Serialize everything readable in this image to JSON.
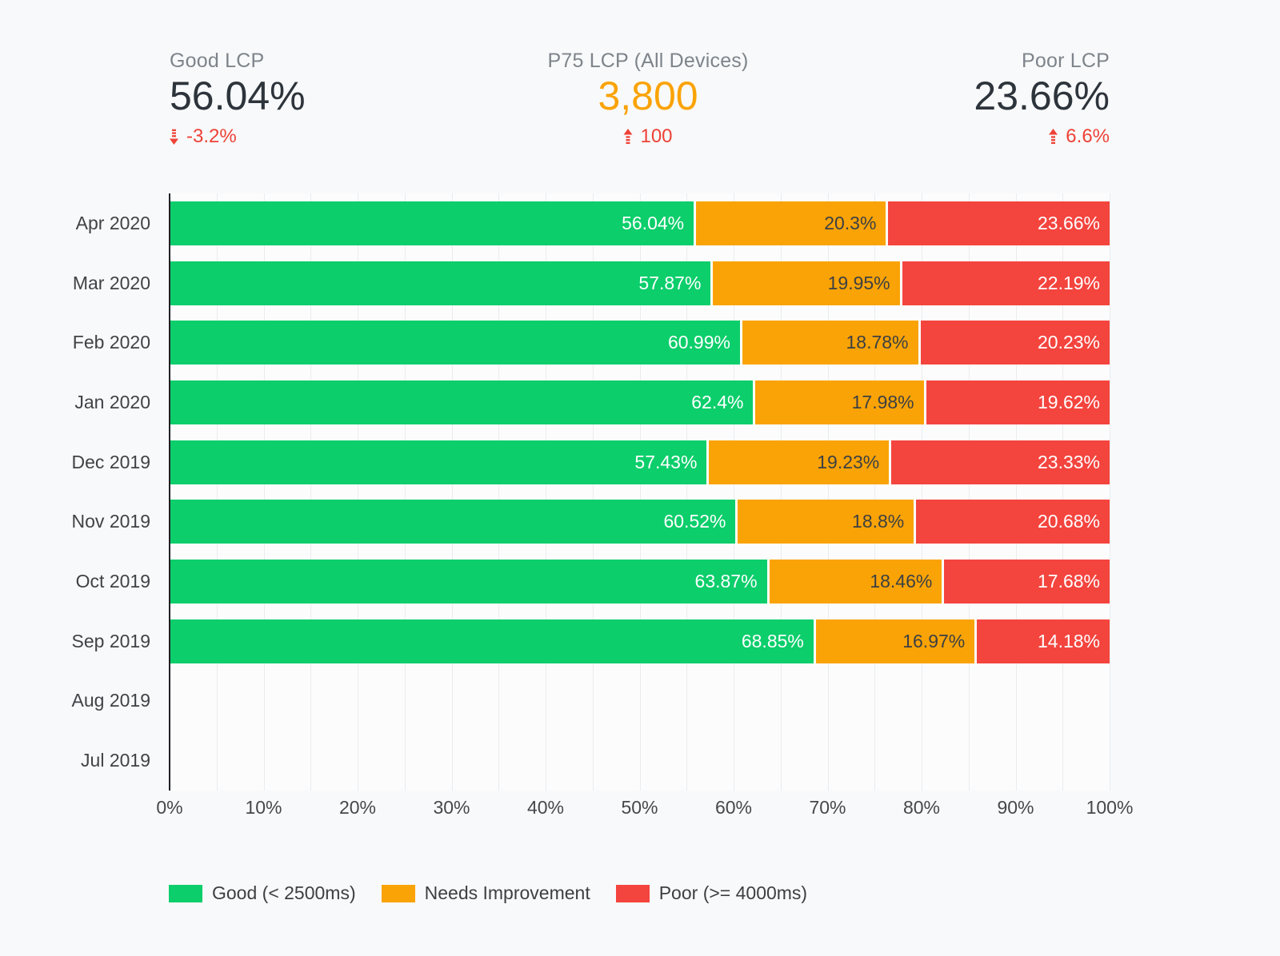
{
  "page": {
    "background": "#f8f9fa"
  },
  "kpis": [
    {
      "label": "Good LCP",
      "value": "56.04%",
      "delta": "-3.2%",
      "direction": "down",
      "value_color": "#2d343b"
    },
    {
      "label": "P75 LCP (All Devices)",
      "value": "3,800",
      "delta": "100",
      "direction": "up",
      "value_color": "#faa306"
    },
    {
      "label": "Poor LCP",
      "value": "23.66%",
      "delta": "6.6%",
      "direction": "up",
      "value_color": "#2d343b"
    }
  ],
  "delta_color": "#ee4237",
  "chart_data": {
    "type": "bar",
    "orientation": "horizontal",
    "stacked": true,
    "categories": [
      "Apr 2020",
      "Mar 2020",
      "Feb 2020",
      "Jan 2020",
      "Dec 2019",
      "Nov 2019",
      "Oct 2019",
      "Sep 2019",
      "Aug 2019",
      "Jul 2019"
    ],
    "series": [
      {
        "name": "Good (< 2500ms)",
        "key": "good",
        "color": "#0cce6b",
        "label_color": "#ffffff",
        "values": [
          56.04,
          57.87,
          60.99,
          62.4,
          57.43,
          60.52,
          63.87,
          68.85,
          null,
          null
        ]
      },
      {
        "name": "Needs Improvement",
        "key": "needs-improvement",
        "color": "#faa306",
        "label_color": "#3c4043",
        "values": [
          20.3,
          19.95,
          18.78,
          17.98,
          19.23,
          18.8,
          18.46,
          16.97,
          null,
          null
        ]
      },
      {
        "name": "Poor (>= 4000ms)",
        "key": "poor",
        "color": "#f4443e",
        "label_color": "#ffffff",
        "values": [
          23.66,
          22.19,
          20.23,
          19.62,
          23.33,
          20.68,
          17.68,
          14.18,
          null,
          null
        ]
      }
    ],
    "x_ticks": [
      "0%",
      "10%",
      "20%",
      "30%",
      "40%",
      "50%",
      "60%",
      "70%",
      "80%",
      "90%",
      "100%"
    ],
    "xlim": [
      0,
      100
    ],
    "grid_minor_step_percent": 5,
    "value_suffix": "%",
    "legend_position": "bottom",
    "grid": true
  }
}
